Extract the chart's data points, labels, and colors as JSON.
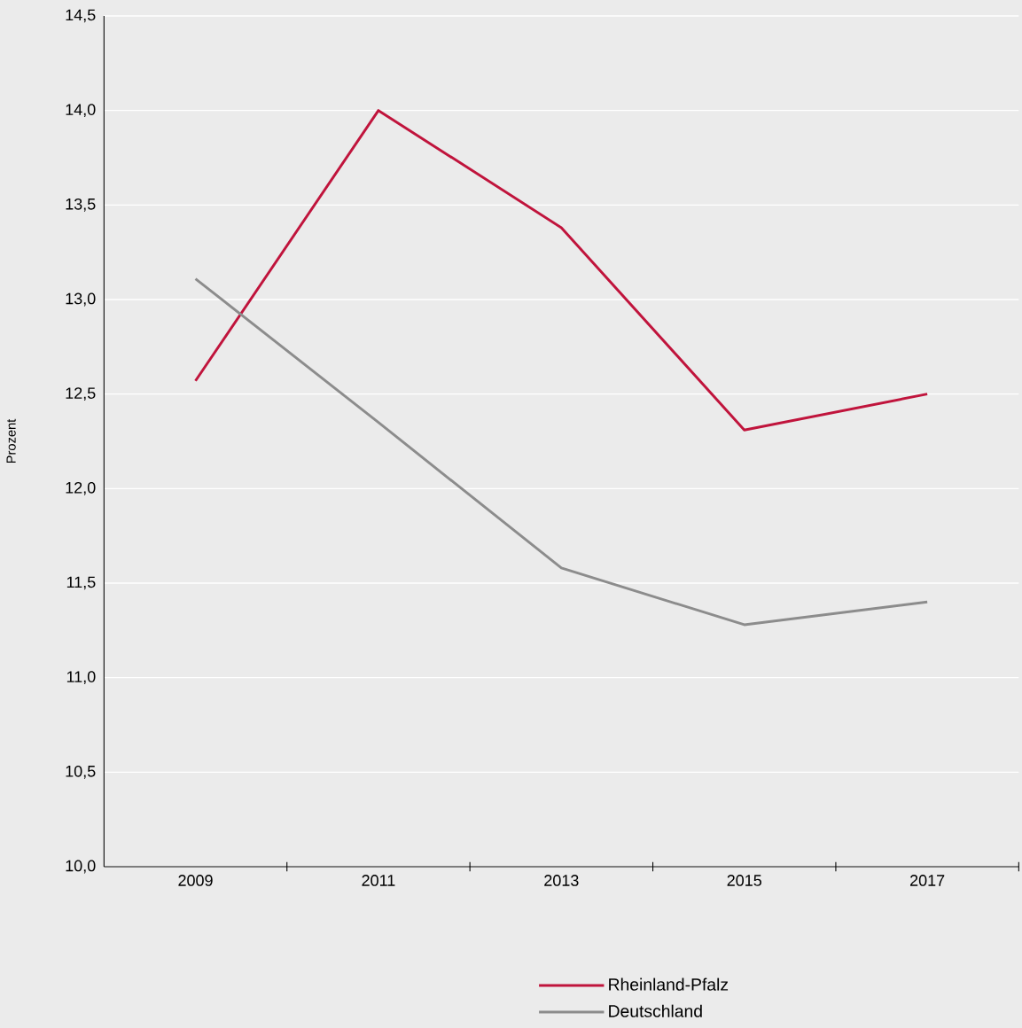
{
  "chart_data": {
    "type": "line",
    "ylabel": "Prozent",
    "categories": [
      "2009",
      "2011",
      "2013",
      "2015",
      "2017"
    ],
    "series": [
      {
        "name": "Rheinland-Pfalz",
        "color": "#c0143c",
        "values": [
          12.57,
          14.0,
          13.38,
          12.31,
          12.5
        ]
      },
      {
        "name": "Deutschland",
        "color": "#8c8c8c",
        "values": [
          13.11,
          12.35,
          11.58,
          11.28,
          11.4
        ]
      }
    ],
    "ylim": [
      10.0,
      14.5
    ],
    "yticks": [
      {
        "value": 10.0,
        "label": "10,0"
      },
      {
        "value": 10.5,
        "label": "10,5"
      },
      {
        "value": 11.0,
        "label": "11,0"
      },
      {
        "value": 11.5,
        "label": "11,5"
      },
      {
        "value": 12.0,
        "label": "12,0"
      },
      {
        "value": 12.5,
        "label": "12,5"
      },
      {
        "value": 13.0,
        "label": "13,0"
      },
      {
        "value": 13.5,
        "label": "13,5"
      },
      {
        "value": 14.0,
        "label": "14,0"
      },
      {
        "value": 14.5,
        "label": "14,5"
      }
    ],
    "grid": "y",
    "legend": "bottom",
    "marker": "none",
    "line_style": "solid"
  }
}
